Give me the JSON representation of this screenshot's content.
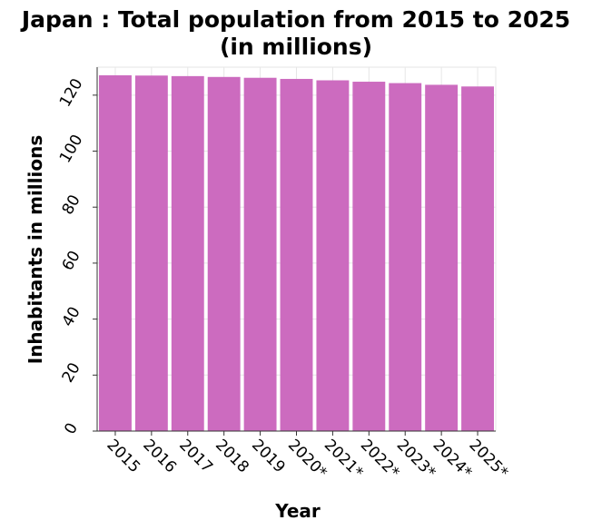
{
  "chart_data": {
    "type": "bar",
    "title": "Japan : Total population from 2015 to 2025 (in millions)",
    "title_lines": [
      "Japan : Total population from 2015 to 2025",
      "(in millions)"
    ],
    "xlabel": "Year",
    "ylabel": "Inhabitants in millions",
    "categories": [
      "2015",
      "2016",
      "2017",
      "2018",
      "2019",
      "2020*",
      "2021*",
      "2022*",
      "2023*",
      "2024*",
      "2025*"
    ],
    "values": [
      127.1,
      127.0,
      126.8,
      126.5,
      126.2,
      125.8,
      125.3,
      124.8,
      124.3,
      123.7,
      123.1
    ],
    "ylim": [
      0,
      130
    ],
    "yticks": [
      0,
      20,
      40,
      60,
      80,
      100,
      120
    ],
    "grid": true,
    "bar_color": "#cc6bbf"
  }
}
